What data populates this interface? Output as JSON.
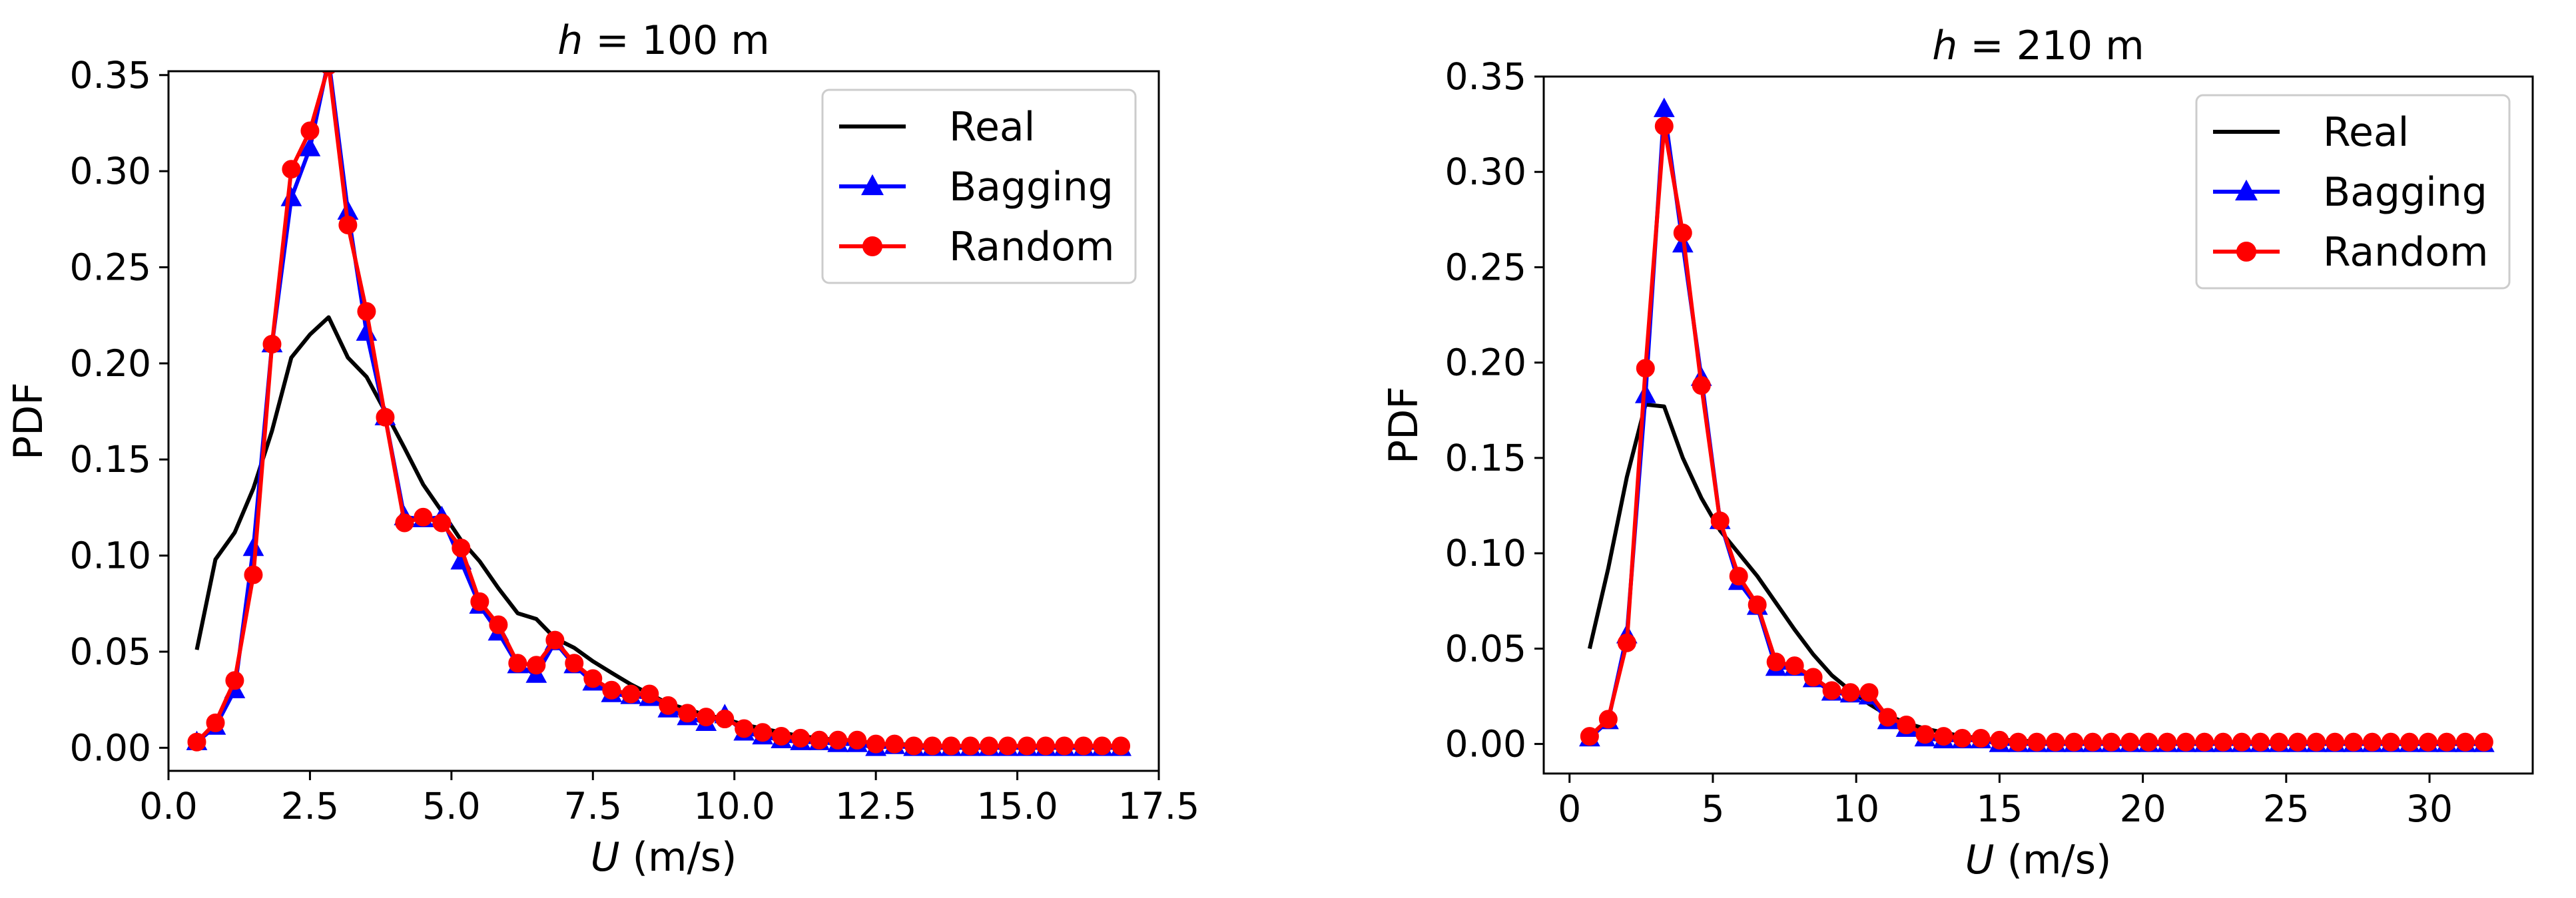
{
  "chart_data": [
    {
      "type": "line",
      "title_var": "h",
      "title_rest": " = 100 m",
      "xlabel_var": "U",
      "xlabel_rest": " (m/s)",
      "ylabel": "PDF",
      "xlim": [
        0,
        17.5
      ],
      "ylim": [
        -0.012,
        0.352
      ],
      "xticks": [
        0.0,
        2.5,
        5.0,
        7.5,
        10.0,
        12.5,
        15.0,
        17.5
      ],
      "xtick_labels": [
        "0.0",
        "2.5",
        "5.0",
        "7.5",
        "10.0",
        "12.5",
        "15.0",
        "17.5"
      ],
      "yticks": [
        0.0,
        0.05,
        0.1,
        0.15,
        0.2,
        0.25,
        0.3,
        0.35
      ],
      "ytick_labels": [
        "0.00",
        "0.05",
        "0.10",
        "0.15",
        "0.20",
        "0.25",
        "0.30",
        "0.35"
      ],
      "legend_position": "top-right",
      "series": [
        {
          "name": "Real",
          "color": "#000000",
          "marker": "none",
          "x": [
            0.5,
            0.83,
            1.17,
            1.5,
            1.83,
            2.17,
            2.5,
            2.83,
            3.17,
            3.5,
            3.83,
            4.17,
            4.5,
            4.83,
            5.17,
            5.5,
            5.83,
            6.17,
            6.5,
            6.83,
            7.17,
            7.5,
            7.83,
            8.17,
            8.5,
            8.83,
            9.17,
            9.5,
            9.83,
            10.17,
            10.5,
            10.83,
            11.17,
            11.5,
            11.83,
            12.17,
            12.5,
            12.83,
            13.17,
            13.5,
            13.83,
            14.17,
            14.5,
            14.83,
            15.17,
            15.5,
            15.83,
            16.17,
            16.5,
            16.83
          ],
          "values": [
            0.051,
            0.098,
            0.112,
            0.135,
            0.165,
            0.203,
            0.215,
            0.224,
            0.203,
            0.193,
            0.175,
            0.156,
            0.137,
            0.123,
            0.108,
            0.097,
            0.083,
            0.07,
            0.067,
            0.057,
            0.052,
            0.045,
            0.039,
            0.033,
            0.028,
            0.023,
            0.02,
            0.017,
            0.015,
            0.012,
            0.01,
            0.008,
            0.006,
            0.005,
            0.004,
            0.003,
            0.002,
            0.002,
            0.0015,
            0.001,
            0.001,
            0.0008,
            0.0006,
            0.0005,
            0.0004,
            0.0003,
            0.0003,
            0.0002,
            0.0002,
            0.0001
          ]
        },
        {
          "name": "Bagging",
          "color": "#0000ff",
          "marker": "triangle",
          "x": [
            0.5,
            0.83,
            1.17,
            1.5,
            1.83,
            2.17,
            2.5,
            2.83,
            3.17,
            3.5,
            3.83,
            4.17,
            4.5,
            4.83,
            5.17,
            5.5,
            5.83,
            6.17,
            6.5,
            6.83,
            7.17,
            7.5,
            7.83,
            8.17,
            8.5,
            8.83,
            9.17,
            9.5,
            9.83,
            10.17,
            10.5,
            10.83,
            11.17,
            11.5,
            11.83,
            12.17,
            12.5,
            12.83,
            13.17,
            13.5,
            13.83,
            14.17,
            14.5,
            14.83,
            15.17,
            15.5,
            15.83,
            16.17,
            16.5,
            16.83
          ],
          "values": [
            0.003,
            0.011,
            0.03,
            0.104,
            0.21,
            0.286,
            0.312,
            0.358,
            0.279,
            0.216,
            0.172,
            0.12,
            0.119,
            0.12,
            0.097,
            0.074,
            0.06,
            0.043,
            0.038,
            0.055,
            0.043,
            0.034,
            0.028,
            0.027,
            0.026,
            0.02,
            0.016,
            0.013,
            0.017,
            0.008,
            0.006,
            0.004,
            0.003,
            0.003,
            0.002,
            0.002,
            0.0,
            0.001,
            0.0,
            0.0,
            0.0,
            0.0,
            0.0,
            0.0,
            0.0,
            0.0,
            0.0,
            0.0,
            0.0,
            0.0
          ]
        },
        {
          "name": "Random",
          "color": "#ff0000",
          "marker": "circle",
          "x": [
            0.5,
            0.83,
            1.17,
            1.5,
            1.83,
            2.17,
            2.5,
            2.83,
            3.17,
            3.5,
            3.83,
            4.17,
            4.5,
            4.83,
            5.17,
            5.5,
            5.83,
            6.17,
            6.5,
            6.83,
            7.17,
            7.5,
            7.83,
            8.17,
            8.5,
            8.83,
            9.17,
            9.5,
            9.83,
            10.17,
            10.5,
            10.83,
            11.17,
            11.5,
            11.83,
            12.17,
            12.5,
            12.83,
            13.17,
            13.5,
            13.83,
            14.17,
            14.5,
            14.83,
            15.17,
            15.5,
            15.83,
            16.17,
            16.5,
            16.83
          ],
          "values": [
            0.003,
            0.013,
            0.035,
            0.09,
            0.21,
            0.301,
            0.321,
            0.355,
            0.272,
            0.227,
            0.172,
            0.117,
            0.12,
            0.117,
            0.104,
            0.076,
            0.064,
            0.044,
            0.043,
            0.056,
            0.044,
            0.036,
            0.03,
            0.028,
            0.028,
            0.022,
            0.018,
            0.016,
            0.015,
            0.01,
            0.008,
            0.006,
            0.005,
            0.004,
            0.004,
            0.004,
            0.002,
            0.002,
            0.001,
            0.001,
            0.001,
            0.001,
            0.001,
            0.001,
            0.001,
            0.001,
            0.001,
            0.001,
            0.001,
            0.001
          ]
        }
      ]
    },
    {
      "type": "line",
      "title_var": "h",
      "title_rest": " = 210 m",
      "xlabel_var": "U",
      "xlabel_rest": " (m/s)",
      "ylabel": "PDF",
      "xlim": [
        -0.9,
        33.6
      ],
      "ylim": [
        -0.0155,
        0.35
      ],
      "xticks": [
        0,
        5,
        10,
        15,
        20,
        25,
        30
      ],
      "xtick_labels": [
        "0",
        "5",
        "10",
        "15",
        "20",
        "25",
        "30"
      ],
      "yticks": [
        0.0,
        0.05,
        0.1,
        0.15,
        0.2,
        0.25,
        0.3,
        0.35
      ],
      "ytick_labels": [
        "0.00",
        "0.05",
        "0.10",
        "0.15",
        "0.20",
        "0.25",
        "0.30",
        "0.35"
      ],
      "legend_position": "top-right",
      "series": [
        {
          "name": "Real",
          "color": "#000000",
          "marker": "none",
          "x": [
            0.7,
            1.35,
            2.0,
            2.65,
            3.3,
            3.95,
            4.6,
            5.25,
            5.9,
            6.55,
            7.2,
            7.85,
            8.5,
            9.15,
            9.8,
            10.45,
            11.1,
            11.75,
            12.4,
            13.05,
            13.7,
            14.35,
            15.0,
            15.65,
            16.3,
            16.95,
            17.6,
            18.25,
            18.9,
            19.55,
            20.2,
            20.85,
            21.5,
            22.15,
            22.8,
            23.45,
            24.1,
            24.75,
            25.4,
            26.05,
            26.7,
            27.35,
            28.0,
            28.65,
            29.3,
            29.95,
            30.6,
            31.25,
            31.9
          ],
          "values": [
            0.05,
            0.092,
            0.14,
            0.178,
            0.177,
            0.15,
            0.129,
            0.112,
            0.1,
            0.088,
            0.074,
            0.06,
            0.047,
            0.036,
            0.028,
            0.021,
            0.015,
            0.011,
            0.008,
            0.006,
            0.004,
            0.003,
            0.002,
            0.002,
            0.001,
            0.001,
            0.001,
            0.001,
            0.0005,
            0.0005,
            0.0005,
            0.0005,
            0.0004,
            0.0003,
            0.0003,
            0.0002,
            0.0002,
            0.0002,
            0.0001,
            0.0001,
            0.0001,
            0.0001,
            0.0001,
            0.0,
            0.0,
            0.0,
            0.0,
            0.0,
            0.0
          ]
        },
        {
          "name": "Bagging",
          "color": "#0000ff",
          "marker": "triangle",
          "x": [
            0.7,
            1.35,
            2.0,
            2.65,
            3.3,
            3.95,
            4.6,
            5.25,
            5.9,
            6.55,
            7.2,
            7.85,
            8.5,
            9.15,
            9.8,
            10.45,
            11.1,
            11.75,
            12.4,
            13.05,
            13.7,
            14.35,
            15.0,
            15.65,
            16.3,
            16.95,
            17.6,
            18.25,
            18.9,
            19.55,
            20.2,
            20.85,
            21.5,
            22.15,
            22.8,
            23.45,
            24.1,
            24.75,
            25.4,
            26.05,
            26.7,
            27.35,
            28.0,
            28.65,
            29.3,
            29.95,
            30.6,
            31.25,
            31.9
          ],
          "values": [
            0.003,
            0.012,
            0.057,
            0.183,
            0.333,
            0.262,
            0.192,
            0.117,
            0.085,
            0.072,
            0.04,
            0.04,
            0.034,
            0.027,
            0.026,
            0.025,
            0.012,
            0.008,
            0.003,
            0.002,
            0.002,
            0.002,
            0.0,
            0.0,
            0.0,
            0.0,
            0.0,
            0.0,
            0.0,
            0.0,
            0.0,
            0.0,
            0.0,
            0.0,
            0.0,
            0.0,
            0.0,
            0.0,
            0.0,
            0.0,
            0.0,
            0.0,
            0.0,
            0.0,
            0.0,
            0.0,
            0.0,
            0.0,
            0.0
          ]
        },
        {
          "name": "Random",
          "color": "#ff0000",
          "marker": "circle",
          "x": [
            0.7,
            1.35,
            2.0,
            2.65,
            3.3,
            3.95,
            4.6,
            5.25,
            5.9,
            6.55,
            7.2,
            7.85,
            8.5,
            9.15,
            9.8,
            10.45,
            11.1,
            11.75,
            12.4,
            13.05,
            13.7,
            14.35,
            15.0,
            15.65,
            16.3,
            16.95,
            17.6,
            18.25,
            18.9,
            19.55,
            20.2,
            20.85,
            21.5,
            22.15,
            22.8,
            23.45,
            24.1,
            24.75,
            25.4,
            26.05,
            26.7,
            27.35,
            28.0,
            28.65,
            29.3,
            29.95,
            30.6,
            31.25,
            31.9
          ],
          "values": [
            0.004,
            0.013,
            0.053,
            0.197,
            0.324,
            0.268,
            0.188,
            0.117,
            0.088,
            0.073,
            0.043,
            0.041,
            0.035,
            0.028,
            0.027,
            0.027,
            0.014,
            0.01,
            0.005,
            0.004,
            0.003,
            0.003,
            0.002,
            0.001,
            0.001,
            0.001,
            0.001,
            0.001,
            0.001,
            0.001,
            0.001,
            0.001,
            0.001,
            0.001,
            0.001,
            0.001,
            0.001,
            0.001,
            0.001,
            0.001,
            0.001,
            0.001,
            0.001,
            0.001,
            0.001,
            0.001,
            0.001,
            0.001,
            0.001
          ]
        }
      ]
    }
  ]
}
